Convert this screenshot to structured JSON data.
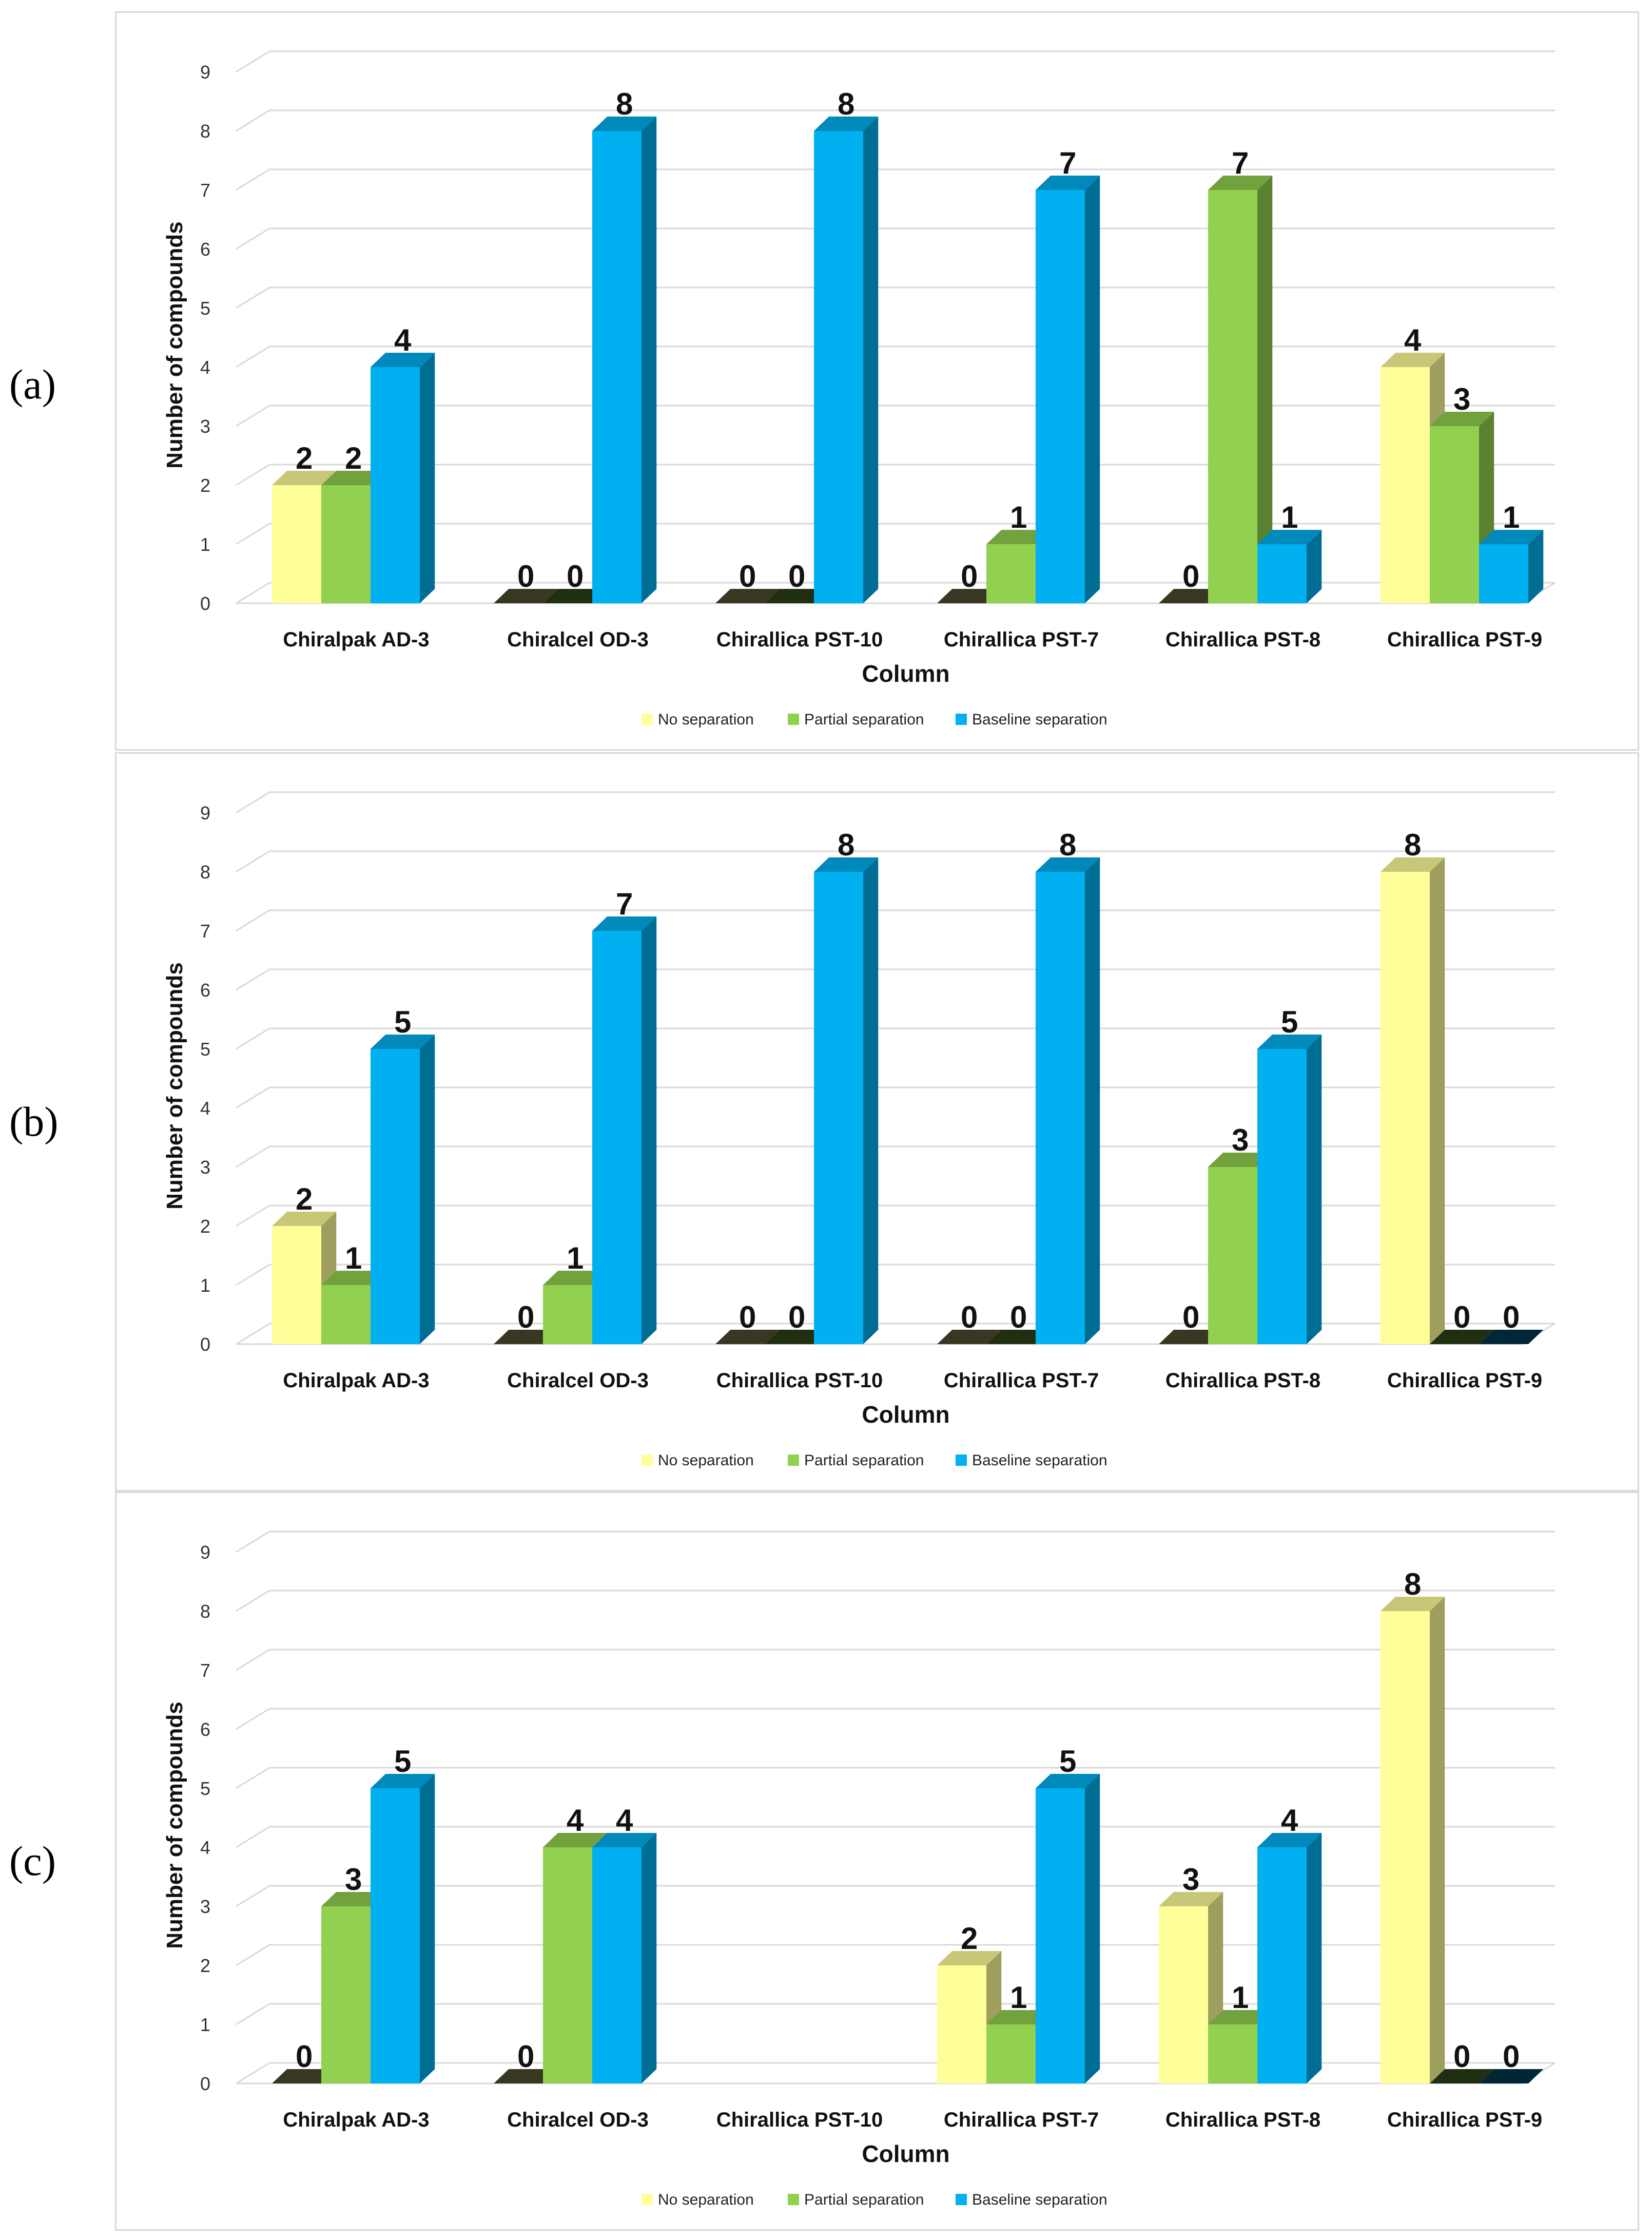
{
  "panels": [
    {
      "letter": "(a)"
    },
    {
      "letter": "(b)"
    },
    {
      "letter": "(c)"
    }
  ],
  "colors": {
    "No separation": "#ffff99",
    "Partial separation": "#92d050",
    "Baseline separation": "#00b0f0"
  },
  "chart_data": [
    {
      "type": "bar",
      "title": "",
      "xlabel": "Column",
      "ylabel": "Number of compounds",
      "ylim": [
        0,
        9
      ],
      "yticks": [
        0,
        1,
        2,
        3,
        4,
        5,
        6,
        7,
        8,
        9
      ],
      "categories": [
        "Chiralpak AD-3",
        "Chiralcel OD-3",
        "Chirallica PST-10",
        "Chirallica PST-7",
        "Chirallica PST-8",
        "Chirallica PST-9"
      ],
      "legend_position": "bottom",
      "series": [
        {
          "name": "No separation",
          "values": [
            2,
            0,
            0,
            0,
            0,
            4
          ]
        },
        {
          "name": "Partial separation",
          "values": [
            2,
            0,
            0,
            1,
            7,
            3
          ]
        },
        {
          "name": "Baseline separation",
          "values": [
            4,
            8,
            8,
            7,
            1,
            1
          ]
        }
      ]
    },
    {
      "type": "bar",
      "title": "",
      "xlabel": "Column",
      "ylabel": "Number of compounds",
      "ylim": [
        0,
        9
      ],
      "yticks": [
        0,
        1,
        2,
        3,
        4,
        5,
        6,
        7,
        8,
        9
      ],
      "categories": [
        "Chiralpak AD-3",
        "Chiralcel OD-3",
        "Chirallica PST-10",
        "Chirallica PST-7",
        "Chirallica PST-8",
        "Chirallica PST-9"
      ],
      "legend_position": "bottom",
      "series": [
        {
          "name": "No separation",
          "values": [
            2,
            0,
            0,
            0,
            0,
            8
          ]
        },
        {
          "name": "Partial separation",
          "values": [
            1,
            1,
            0,
            0,
            3,
            0
          ]
        },
        {
          "name": "Baseline separation",
          "values": [
            5,
            7,
            8,
            8,
            5,
            0
          ]
        }
      ]
    },
    {
      "type": "bar",
      "title": "",
      "xlabel": "Column",
      "ylabel": "Number of compounds",
      "ylim": [
        0,
        9
      ],
      "yticks": [
        0,
        1,
        2,
        3,
        4,
        5,
        6,
        7,
        8,
        9
      ],
      "categories": [
        "Chiralpak AD-3",
        "Chiralcel OD-3",
        "Chirallica PST-10",
        "Chirallica PST-7",
        "Chirallica PST-8",
        "Chirallica PST-9"
      ],
      "legend_position": "bottom",
      "series": [
        {
          "name": "No separation",
          "values": [
            0,
            0,
            null,
            2,
            3,
            8
          ]
        },
        {
          "name": "Partial separation",
          "values": [
            3,
            4,
            null,
            1,
            1,
            0
          ]
        },
        {
          "name": "Baseline separation",
          "values": [
            5,
            4,
            null,
            5,
            4,
            0
          ]
        }
      ]
    }
  ]
}
